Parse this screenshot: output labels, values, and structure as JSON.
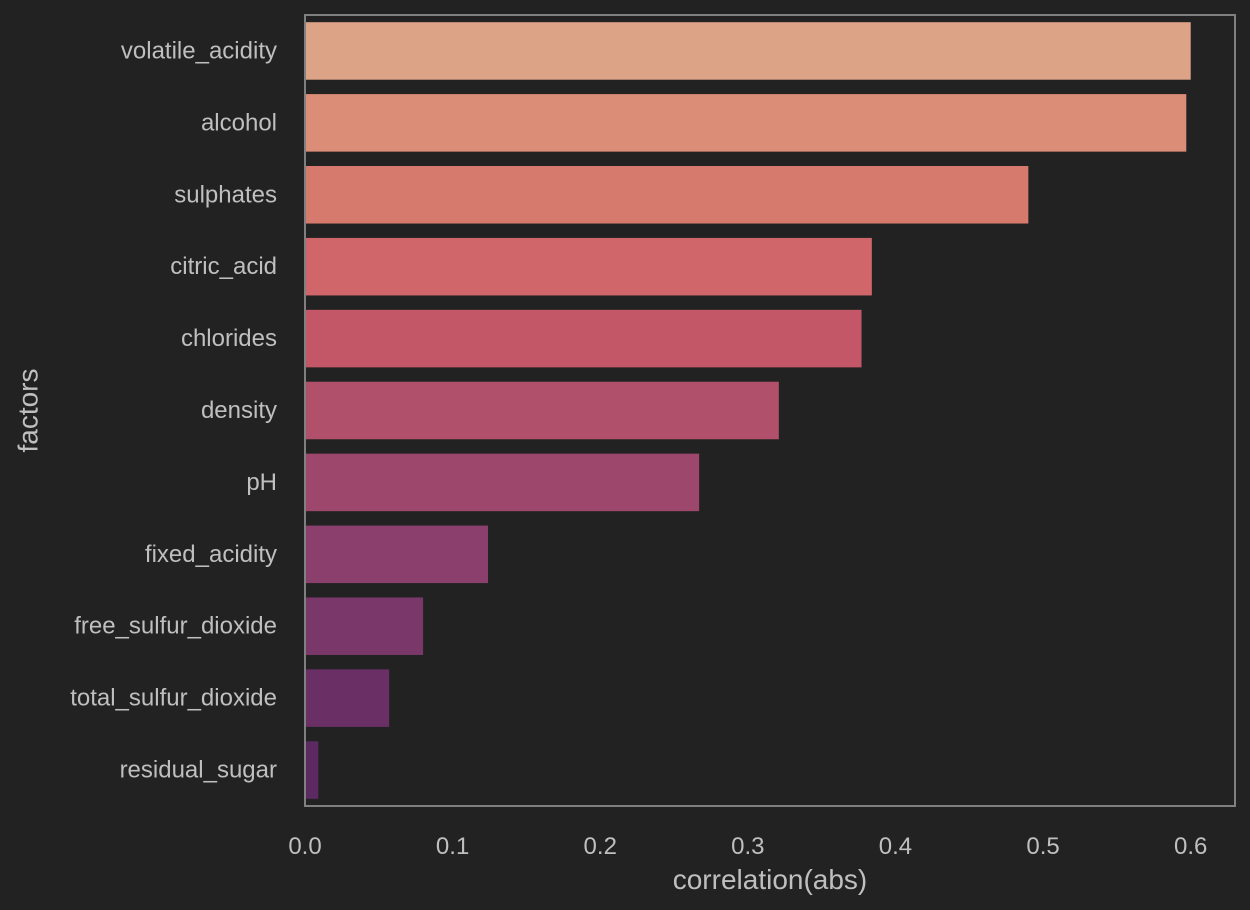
{
  "chart_data": {
    "type": "bar",
    "orientation": "horizontal",
    "xlabel": "correlation(abs)",
    "ylabel": "factors",
    "xlim": [
      0,
      0.63
    ],
    "xticks": [
      "0.0",
      "0.1",
      "0.2",
      "0.3",
      "0.4",
      "0.5",
      "0.6"
    ],
    "grid": false,
    "categories": [
      "volatile_acidity",
      "alcohol",
      "sulphates",
      "citric_acid",
      "chlorides",
      "density",
      "pH",
      "fixed_acidity",
      "free_sulfur_dioxide",
      "total_sulfur_dioxide",
      "residual_sugar"
    ],
    "values": [
      0.6,
      0.597,
      0.49,
      0.384,
      0.377,
      0.321,
      0.267,
      0.124,
      0.08,
      0.057,
      0.009
    ],
    "colors": [
      "#DDA386",
      "#DB8D77",
      "#D67A6D",
      "#D0656A",
      "#C45767",
      "#B0506A",
      "#9D476C",
      "#8A3F6C",
      "#7A376A",
      "#6A3066",
      "#5C2A60"
    ],
    "theme": {
      "background": "#222222",
      "text": "#BFBFBF",
      "frame": "#808080"
    }
  }
}
